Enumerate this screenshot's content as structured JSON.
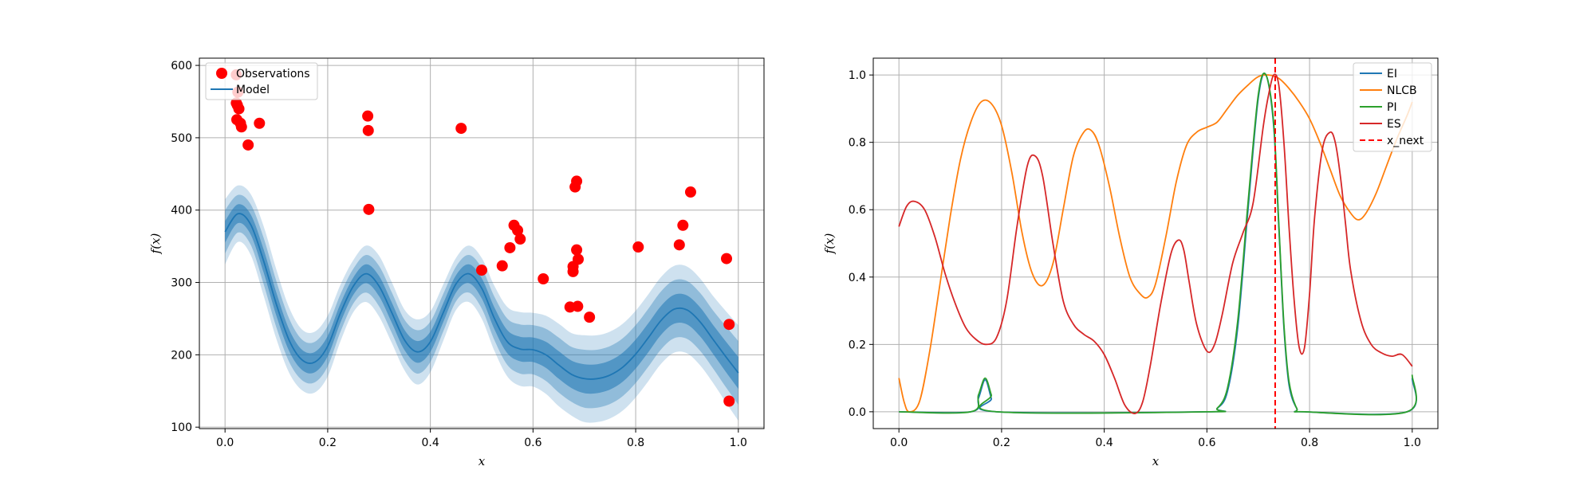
{
  "chart_data": [
    {
      "type": "scatter",
      "xlabel": "x",
      "ylabel": "f(x)",
      "xlim": [
        -0.05,
        1.05
      ],
      "ylim": [
        98,
        610
      ],
      "xticks": [
        0.0,
        0.2,
        0.4,
        0.6,
        0.8,
        1.0
      ],
      "xtick_labels": [
        "0.0",
        "0.2",
        "0.4",
        "0.6",
        "0.8",
        "1.0"
      ],
      "yticks": [
        100,
        200,
        300,
        400,
        500,
        600
      ],
      "ytick_labels": [
        "100",
        "200",
        "300",
        "400",
        "500",
        "600"
      ],
      "grid": true,
      "legend_position": "top-left",
      "legend": [
        "Observations",
        "Model"
      ],
      "colors": {
        "observations": "#ff0000",
        "model": "#1f77b4"
      },
      "model": {
        "x": [
          0.0,
          0.025,
          0.05,
          0.075,
          0.1,
          0.125,
          0.15,
          0.175,
          0.2,
          0.225,
          0.25,
          0.275,
          0.3,
          0.325,
          0.35,
          0.375,
          0.4,
          0.425,
          0.45,
          0.475,
          0.5,
          0.525,
          0.55,
          0.575,
          0.6,
          0.625,
          0.65,
          0.675,
          0.7,
          0.725,
          0.75,
          0.775,
          0.8,
          0.825,
          0.85,
          0.875,
          0.9,
          0.925,
          0.95,
          0.975,
          1.0
        ],
        "mean": [
          370,
          395,
          380,
          330,
          270,
          220,
          193,
          190,
          212,
          258,
          295,
          312,
          295,
          258,
          220,
          204,
          218,
          258,
          298,
          312,
          292,
          250,
          218,
          208,
          207,
          200,
          186,
          173,
          167,
          167,
          172,
          183,
          201,
          224,
          248,
          263,
          262,
          246,
          222,
          198,
          175
        ],
        "std": [
          15,
          13,
          14,
          16,
          16,
          15,
          14,
          14,
          14,
          13,
          12,
          13,
          14,
          14,
          14,
          15,
          14,
          13,
          12,
          13,
          14,
          15,
          16,
          17,
          17,
          18,
          19,
          19,
          20,
          20,
          20,
          20,
          20,
          20,
          20,
          20,
          20,
          20,
          20,
          21,
          22
        ]
      },
      "observations": {
        "x": [
          0.022,
          0.025,
          0.022,
          0.024,
          0.027,
          0.023,
          0.03,
          0.032,
          0.045,
          0.067,
          0.278,
          0.279,
          0.28,
          0.46,
          0.5,
          0.54,
          0.555,
          0.563,
          0.57,
          0.575,
          0.62,
          0.672,
          0.678,
          0.678,
          0.682,
          0.685,
          0.685,
          0.687,
          0.688,
          0.71,
          0.805,
          0.885,
          0.892,
          0.907,
          0.977,
          0.982,
          0.982
        ],
        "y": [
          587,
          563,
          548,
          545,
          540,
          525,
          520,
          515,
          490,
          520,
          530,
          510,
          401,
          513,
          317,
          323,
          348,
          379,
          372,
          360,
          305,
          266,
          322,
          315,
          432,
          440,
          345,
          267,
          332,
          252,
          349,
          352,
          379,
          425,
          333,
          242,
          136
        ]
      }
    },
    {
      "type": "line",
      "xlabel": "x",
      "ylabel": "f(x)",
      "xlim": [
        -0.05,
        1.05
      ],
      "ylim": [
        -0.05,
        1.05
      ],
      "xticks": [
        0.0,
        0.2,
        0.4,
        0.6,
        0.8,
        1.0
      ],
      "xtick_labels": [
        "0.0",
        "0.2",
        "0.4",
        "0.6",
        "0.8",
        "1.0"
      ],
      "yticks": [
        0.0,
        0.2,
        0.4,
        0.6,
        0.8,
        1.0
      ],
      "ytick_labels": [
        "0.0",
        "0.2",
        "0.4",
        "0.6",
        "0.8",
        "1.0"
      ],
      "grid": true,
      "legend_position": "top-right",
      "legend": [
        "EI",
        "NLCB",
        "PI",
        "ES",
        "x_next"
      ],
      "x_next": 0.733,
      "series": [
        {
          "name": "EI",
          "color": "#1f77b4",
          "x": [
            0.0,
            0.14,
            0.155,
            0.168,
            0.18,
            0.19,
            0.6,
            0.62,
            0.64,
            0.66,
            0.68,
            0.7,
            0.715,
            0.73,
            0.74,
            0.75,
            0.76,
            0.775,
            0.79,
            0.99,
            1.0
          ],
          "y": [
            0.0,
            0.0,
            0.04,
            0.095,
            0.04,
            0.0,
            0.0,
            0.01,
            0.06,
            0.25,
            0.6,
            0.93,
            1.0,
            0.85,
            0.55,
            0.25,
            0.08,
            0.01,
            0.0,
            0.0,
            0.1
          ]
        },
        {
          "name": "NLCB",
          "color": "#ff7f0e",
          "x": [
            0.0,
            0.01,
            0.02,
            0.04,
            0.06,
            0.08,
            0.1,
            0.12,
            0.14,
            0.16,
            0.18,
            0.2,
            0.22,
            0.24,
            0.26,
            0.28,
            0.3,
            0.32,
            0.34,
            0.36,
            0.375,
            0.39,
            0.41,
            0.43,
            0.45,
            0.47,
            0.485,
            0.5,
            0.52,
            0.54,
            0.56,
            0.58,
            0.6,
            0.62,
            0.64,
            0.66,
            0.68,
            0.7,
            0.72,
            0.74,
            0.76,
            0.78,
            0.8,
            0.82,
            0.84,
            0.86,
            0.88,
            0.895,
            0.91,
            0.93,
            0.95,
            0.97,
            0.99,
            1.0
          ],
          "y": [
            0.1,
            0.03,
            0.0,
            0.03,
            0.18,
            0.38,
            0.58,
            0.75,
            0.86,
            0.92,
            0.915,
            0.85,
            0.71,
            0.53,
            0.41,
            0.375,
            0.44,
            0.6,
            0.76,
            0.83,
            0.835,
            0.79,
            0.67,
            0.52,
            0.4,
            0.35,
            0.34,
            0.38,
            0.52,
            0.68,
            0.79,
            0.83,
            0.845,
            0.86,
            0.9,
            0.94,
            0.97,
            0.995,
            1.0,
            0.99,
            0.96,
            0.92,
            0.87,
            0.8,
            0.72,
            0.64,
            0.59,
            0.57,
            0.59,
            0.65,
            0.73,
            0.81,
            0.88,
            0.92
          ]
        },
        {
          "name": "PI",
          "color": "#2ca02c",
          "x": [
            0.0,
            0.14,
            0.155,
            0.168,
            0.18,
            0.19,
            0.6,
            0.62,
            0.64,
            0.66,
            0.68,
            0.7,
            0.715,
            0.73,
            0.74,
            0.75,
            0.76,
            0.775,
            0.79,
            0.99,
            1.0
          ],
          "y": [
            0.0,
            0.0,
            0.05,
            0.1,
            0.05,
            0.0,
            0.0,
            0.01,
            0.07,
            0.27,
            0.62,
            0.94,
            1.0,
            0.86,
            0.56,
            0.26,
            0.09,
            0.01,
            0.0,
            0.0,
            0.11
          ]
        },
        {
          "name": "ES",
          "color": "#d62728",
          "x": [
            0.0,
            0.015,
            0.03,
            0.05,
            0.07,
            0.09,
            0.11,
            0.13,
            0.15,
            0.17,
            0.19,
            0.21,
            0.23,
            0.25,
            0.265,
            0.28,
            0.3,
            0.32,
            0.34,
            0.36,
            0.38,
            0.4,
            0.42,
            0.44,
            0.46,
            0.475,
            0.49,
            0.51,
            0.53,
            0.545,
            0.555,
            0.565,
            0.58,
            0.6,
            0.615,
            0.63,
            0.65,
            0.67,
            0.69,
            0.71,
            0.72,
            0.73,
            0.74,
            0.75,
            0.76,
            0.77,
            0.78,
            0.79,
            0.8,
            0.81,
            0.825,
            0.84,
            0.85,
            0.86,
            0.87,
            0.88,
            0.9,
            0.92,
            0.94,
            0.96,
            0.98,
            1.0
          ],
          "y": [
            0.55,
            0.61,
            0.625,
            0.6,
            0.52,
            0.41,
            0.32,
            0.25,
            0.215,
            0.2,
            0.22,
            0.33,
            0.55,
            0.73,
            0.76,
            0.7,
            0.5,
            0.33,
            0.26,
            0.23,
            0.21,
            0.17,
            0.1,
            0.02,
            -0.005,
            0.03,
            0.14,
            0.32,
            0.47,
            0.51,
            0.48,
            0.39,
            0.26,
            0.18,
            0.2,
            0.29,
            0.44,
            0.53,
            0.62,
            0.85,
            0.94,
            1.0,
            0.97,
            0.8,
            0.55,
            0.33,
            0.19,
            0.19,
            0.35,
            0.58,
            0.78,
            0.83,
            0.8,
            0.7,
            0.56,
            0.42,
            0.27,
            0.2,
            0.175,
            0.165,
            0.17,
            0.135
          ]
        }
      ]
    }
  ]
}
